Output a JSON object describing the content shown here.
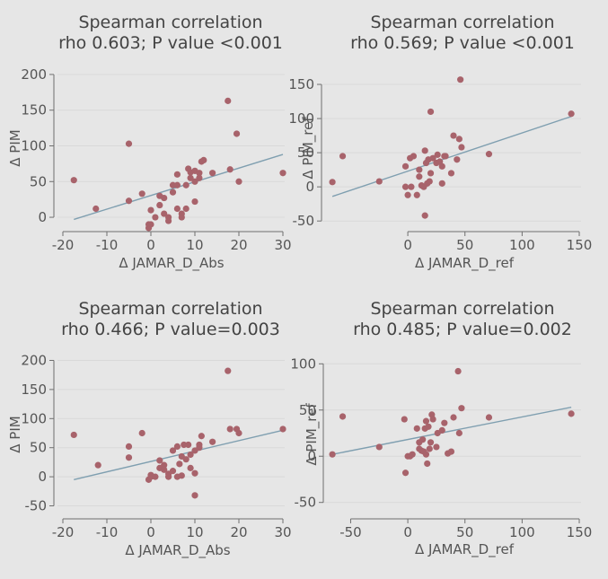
{
  "chart_data": [
    {
      "type": "scatter",
      "title": "Spearman correlation",
      "subtitle": "rho 0.603; P value <0.001",
      "xlabel": "Δ JAMAR_D_Abs",
      "ylabel": "Δ PIM",
      "xlim": [
        -20,
        30
      ],
      "ylim": [
        -10,
        210
      ],
      "xticks": [
        -20,
        -10,
        0,
        10,
        20,
        30
      ],
      "yticks": [
        0,
        50,
        100,
        150,
        200
      ],
      "grid": true,
      "marker_color": "#a8636b",
      "fit_color": "#7f9fb0",
      "points": [
        [
          -17.5,
          52
        ],
        [
          -12.5,
          12
        ],
        [
          -5,
          103
        ],
        [
          -5,
          23
        ],
        [
          -2,
          33
        ],
        [
          -0.5,
          -10
        ],
        [
          -0.5,
          -15
        ],
        [
          0,
          -10
        ],
        [
          0,
          10
        ],
        [
          1,
          0
        ],
        [
          2,
          17
        ],
        [
          2,
          30
        ],
        [
          3,
          27
        ],
        [
          3,
          5
        ],
        [
          4,
          0
        ],
        [
          4,
          -5
        ],
        [
          5,
          35
        ],
        [
          5,
          45
        ],
        [
          6,
          45
        ],
        [
          6,
          60
        ],
        [
          6,
          12
        ],
        [
          7,
          0
        ],
        [
          7,
          5
        ],
        [
          8,
          12
        ],
        [
          8,
          45
        ],
        [
          8.5,
          68
        ],
        [
          9,
          55
        ],
        [
          9,
          63
        ],
        [
          10,
          50
        ],
        [
          10,
          65
        ],
        [
          10,
          22
        ],
        [
          11,
          55
        ],
        [
          11,
          62
        ],
        [
          11.5,
          78
        ],
        [
          12,
          80
        ],
        [
          14,
          62
        ],
        [
          17.5,
          163
        ],
        [
          18,
          67
        ],
        [
          19.5,
          117
        ],
        [
          20,
          50
        ],
        [
          30,
          62
        ]
      ],
      "fit": [
        [
          -17.5,
          -3
        ],
        [
          30,
          88
        ]
      ]
    },
    {
      "type": "scatter",
      "title": "Spearman correlation",
      "subtitle": "rho 0.569; P value <0.001",
      "xlabel": "Δ JAMAR_D_ref",
      "ylabel": "Δ PIM_ref",
      "xlim": [
        -70,
        150
      ],
      "ylim": [
        -55,
        175
      ],
      "xticks": [
        0,
        50,
        100,
        150
      ],
      "yticks": [
        -50,
        0,
        50,
        100,
        150
      ],
      "grid": true,
      "marker_color": "#a8636b",
      "fit_color": "#7f9fb0",
      "points": [
        [
          -66,
          7
        ],
        [
          -57,
          45
        ],
        [
          -25,
          8
        ],
        [
          -2,
          30
        ],
        [
          -2,
          0
        ],
        [
          0,
          -12
        ],
        [
          2,
          42
        ],
        [
          3,
          0
        ],
        [
          5,
          45
        ],
        [
          8,
          -12
        ],
        [
          10,
          25
        ],
        [
          10,
          15
        ],
        [
          12,
          2
        ],
        [
          14,
          0
        ],
        [
          15,
          53
        ],
        [
          15,
          -42
        ],
        [
          16,
          35
        ],
        [
          17,
          5
        ],
        [
          18,
          40
        ],
        [
          19,
          8
        ],
        [
          20,
          20
        ],
        [
          20,
          110
        ],
        [
          22,
          42
        ],
        [
          25,
          35
        ],
        [
          26,
          47
        ],
        [
          28,
          37
        ],
        [
          30,
          5
        ],
        [
          30,
          30
        ],
        [
          32,
          45
        ],
        [
          33,
          45
        ],
        [
          38,
          20
        ],
        [
          40,
          75
        ],
        [
          43,
          40
        ],
        [
          45,
          70
        ],
        [
          46,
          157
        ],
        [
          47,
          58
        ],
        [
          71,
          48
        ],
        [
          143,
          107
        ]
      ],
      "fit": [
        [
          -66,
          -14
        ],
        [
          143,
          103
        ]
      ]
    },
    {
      "type": "scatter",
      "title": "Spearman correlation",
      "subtitle": "rho 0.466; P value=0.003",
      "xlabel": "Δ JAMAR_D_Abs",
      "ylabel": "Δ PIM",
      "xlim": [
        -20,
        30
      ],
      "ylim": [
        -60,
        210
      ],
      "xticks": [
        -20,
        -10,
        0,
        10,
        20,
        30
      ],
      "yticks": [
        -50,
        0,
        50,
        100,
        150,
        200
      ],
      "grid": true,
      "marker_color": "#a8636b",
      "fit_color": "#7f9fb0",
      "points": [
        [
          -17.5,
          72
        ],
        [
          -12,
          20
        ],
        [
          -5,
          52
        ],
        [
          -5,
          33
        ],
        [
          -2,
          75
        ],
        [
          -0.5,
          -5
        ],
        [
          0,
          0
        ],
        [
          0,
          3
        ],
        [
          1,
          0
        ],
        [
          2,
          15
        ],
        [
          2,
          28
        ],
        [
          3,
          12
        ],
        [
          3,
          20
        ],
        [
          4,
          5
        ],
        [
          4,
          0
        ],
        [
          5,
          45
        ],
        [
          5,
          10
        ],
        [
          6,
          52
        ],
        [
          6,
          0
        ],
        [
          6.5,
          22
        ],
        [
          7,
          35
        ],
        [
          7,
          2
        ],
        [
          7.5,
          55
        ],
        [
          8,
          30
        ],
        [
          8.5,
          55
        ],
        [
          9,
          38
        ],
        [
          9,
          15
        ],
        [
          10,
          45
        ],
        [
          10,
          -32
        ],
        [
          10,
          6
        ],
        [
          11,
          55
        ],
        [
          11,
          50
        ],
        [
          11.5,
          70
        ],
        [
          14,
          60
        ],
        [
          17.5,
          182
        ],
        [
          18,
          82
        ],
        [
          19.5,
          82
        ],
        [
          20,
          75
        ],
        [
          30,
          82
        ]
      ],
      "fit": [
        [
          -17.5,
          -5
        ],
        [
          30,
          80
        ]
      ]
    },
    {
      "type": "scatter",
      "title": "Spearman correlation",
      "subtitle": "rho 0.485; P value=0.002",
      "xlabel": "Δ JAMAR_D_ref",
      "ylabel": "Δ PIM_ref",
      "xlim": [
        -70,
        150
      ],
      "ylim": [
        -60,
        110
      ],
      "xticks": [
        -50,
        0,
        50,
        100,
        150
      ],
      "yticks": [
        -50,
        0,
        50,
        100
      ],
      "grid": true,
      "marker_color": "#a8636b",
      "fit_color": "#7f9fb0",
      "points": [
        [
          -66,
          2
        ],
        [
          -57,
          43
        ],
        [
          -25,
          10
        ],
        [
          -3,
          40
        ],
        [
          -2,
          -18
        ],
        [
          0,
          0
        ],
        [
          2,
          0
        ],
        [
          4,
          2
        ],
        [
          8,
          30
        ],
        [
          10,
          15
        ],
        [
          10,
          8
        ],
        [
          12,
          6
        ],
        [
          13,
          18
        ],
        [
          14,
          5
        ],
        [
          15,
          30
        ],
        [
          16,
          38
        ],
        [
          16,
          2
        ],
        [
          17,
          -8
        ],
        [
          18,
          32
        ],
        [
          19,
          8
        ],
        [
          20,
          15
        ],
        [
          21,
          45
        ],
        [
          22,
          40
        ],
        [
          25,
          10
        ],
        [
          26,
          25
        ],
        [
          30,
          28
        ],
        [
          32,
          36
        ],
        [
          35,
          3
        ],
        [
          38,
          5
        ],
        [
          40,
          42
        ],
        [
          44,
          92
        ],
        [
          45,
          25
        ],
        [
          47,
          52
        ],
        [
          71,
          42
        ],
        [
          143,
          46
        ]
      ],
      "fit": [
        [
          -66,
          2
        ],
        [
          143,
          53
        ]
      ]
    }
  ]
}
